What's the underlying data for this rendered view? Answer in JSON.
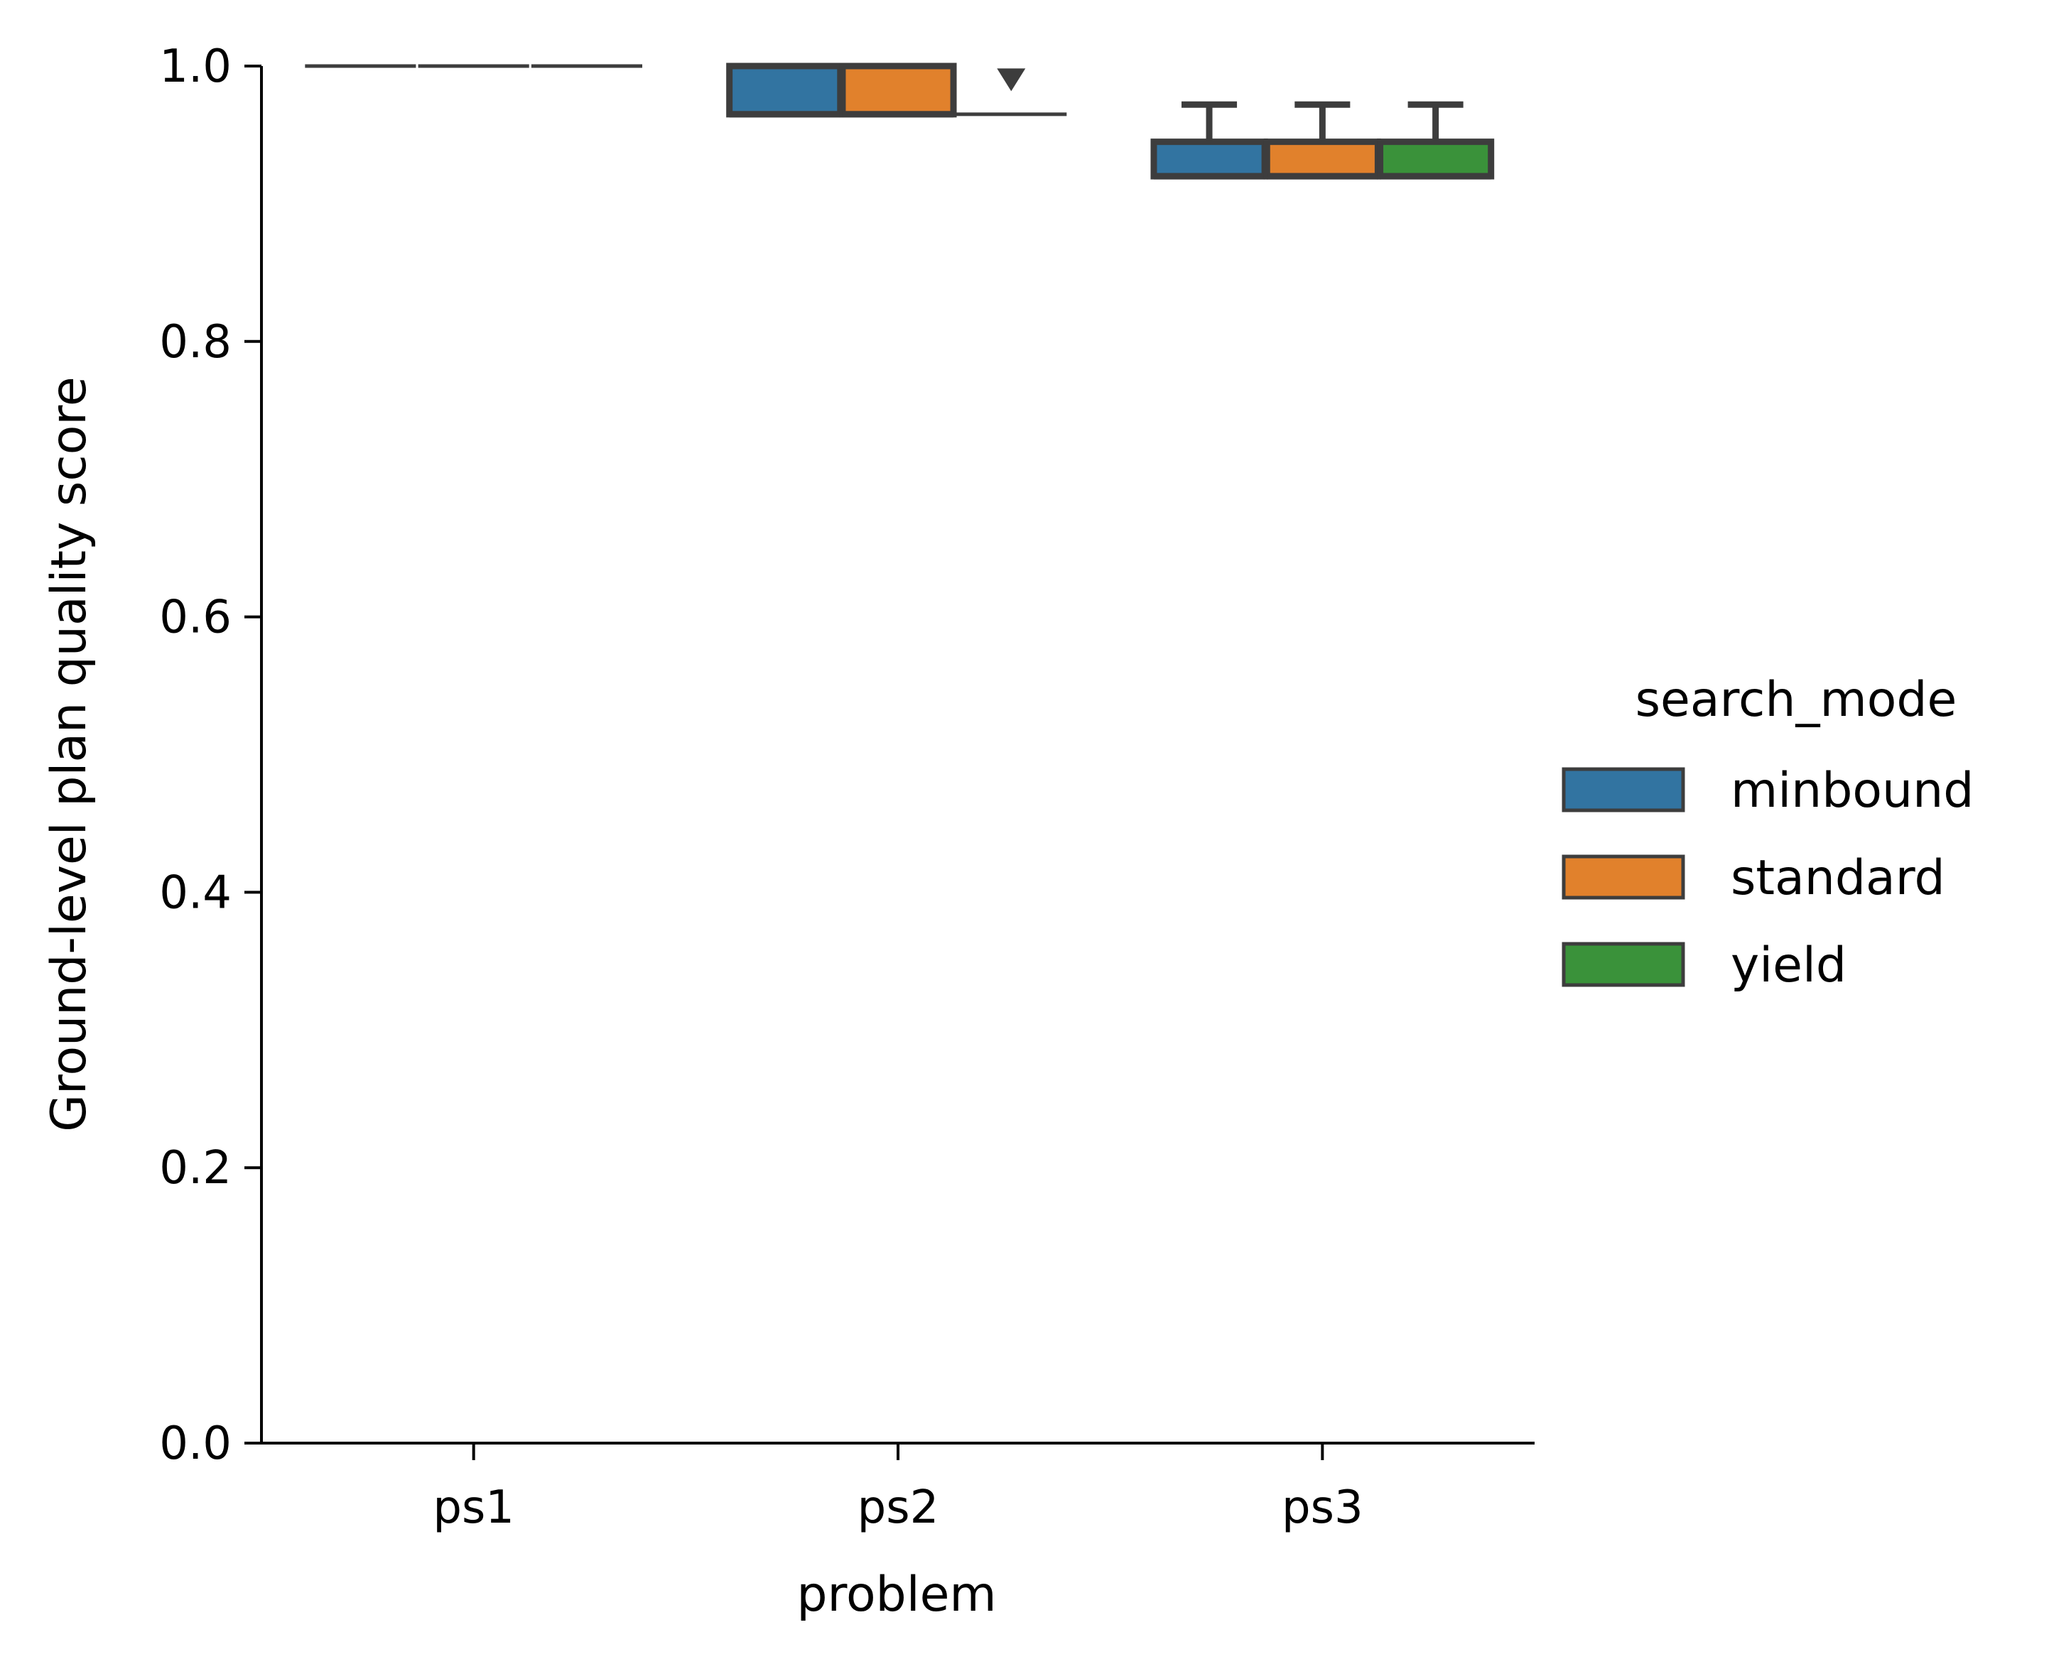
{
  "chart_data": {
    "type": "box",
    "xlabel": "problem",
    "ylabel": "Ground-level plan quality score",
    "ylim": [
      0,
      1
    ],
    "yticks": [
      "0.0",
      "0.2",
      "0.4",
      "0.6",
      "0.8",
      "1.0"
    ],
    "categories": [
      "ps1",
      "ps2",
      "ps3"
    ],
    "legend": {
      "title": "search_mode",
      "position": "right",
      "items": [
        {
          "label": "minbound",
          "color": "#3274a1"
        },
        {
          "label": "standard",
          "color": "#e1812c"
        },
        {
          "label": "yield",
          "color": "#3a923a"
        }
      ]
    },
    "series": [
      {
        "name": "minbound",
        "color": "#3274a1",
        "boxes": [
          {
            "category": "ps1",
            "min": 1.0,
            "q1": 1.0,
            "median": 1.0,
            "q3": 1.0,
            "max": 1.0,
            "outliers": []
          },
          {
            "category": "ps2",
            "min": 0.965,
            "q1": 0.965,
            "median": 0.965,
            "q3": 1.0,
            "max": 1.0,
            "outliers": []
          },
          {
            "category": "ps3",
            "min": 0.92,
            "q1": 0.92,
            "median": 0.92,
            "q3": 0.945,
            "max": 0.972,
            "outliers": []
          }
        ]
      },
      {
        "name": "standard",
        "color": "#e1812c",
        "boxes": [
          {
            "category": "ps1",
            "min": 1.0,
            "q1": 1.0,
            "median": 1.0,
            "q3": 1.0,
            "max": 1.0,
            "outliers": []
          },
          {
            "category": "ps2",
            "min": 0.965,
            "q1": 0.965,
            "median": 0.965,
            "q3": 1.0,
            "max": 1.0,
            "outliers": []
          },
          {
            "category": "ps3",
            "min": 0.92,
            "q1": 0.92,
            "median": 0.92,
            "q3": 0.945,
            "max": 0.972,
            "outliers": []
          }
        ]
      },
      {
        "name": "yield",
        "color": "#3a923a",
        "boxes": [
          {
            "category": "ps1",
            "min": 1.0,
            "q1": 1.0,
            "median": 1.0,
            "q3": 1.0,
            "max": 1.0,
            "outliers": []
          },
          {
            "category": "ps2",
            "min": 0.965,
            "q1": 0.965,
            "median": 0.965,
            "q3": 0.965,
            "max": 0.965,
            "outliers": [
              0.99
            ]
          },
          {
            "category": "ps3",
            "min": 0.92,
            "q1": 0.92,
            "median": 0.92,
            "q3": 0.945,
            "max": 0.972,
            "outliers": []
          }
        ]
      }
    ],
    "colors": {
      "axis": "#000000",
      "box_edge": "#3d3d3d"
    }
  }
}
